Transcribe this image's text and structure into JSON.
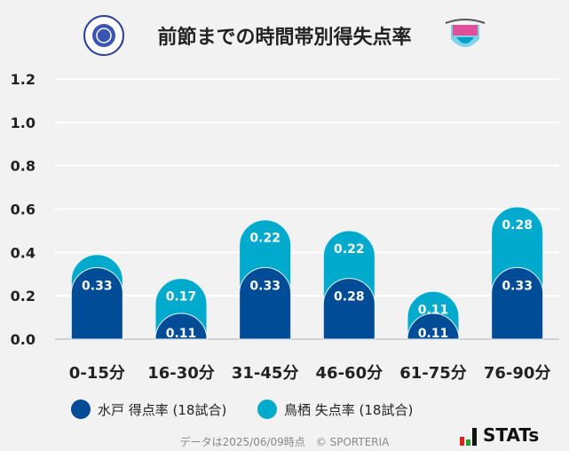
{
  "title": "前節までの時間帯別得失点率",
  "logos": {
    "left": "FC MITO HOLLYHOCK",
    "right": "sagantosu"
  },
  "chart_data": {
    "type": "bar",
    "stacked": true,
    "categories": [
      "0-15分",
      "16-30分",
      "31-45分",
      "46-60分",
      "61-75分",
      "76-90分"
    ],
    "series": [
      {
        "name": "水戸 得点率 (18試合)",
        "color": "#004c97",
        "values": [
          0.33,
          0.11,
          0.33,
          0.28,
          0.11,
          0.33
        ],
        "labels": [
          "0.33",
          "0.11",
          "0.33",
          "0.28",
          "0.11",
          "0.33"
        ]
      },
      {
        "name": "鳥栖 失点率 (18試合)",
        "color": "#00aacc",
        "values": [
          0.06,
          0.17,
          0.22,
          0.22,
          0.11,
          0.28
        ],
        "labels": [
          "",
          "0.17",
          "0.22",
          "0.22",
          "0.11",
          "0.28"
        ]
      }
    ],
    "ylim": [
      0,
      1.2
    ],
    "yticks": [
      "0.0",
      "0.2",
      "0.4",
      "0.6",
      "0.8",
      "1.0",
      "1.2"
    ],
    "grid": true,
    "legend": "bottom"
  },
  "footer": "データは2025/06/09時点　© SPORTERIA",
  "brand": "STATs"
}
